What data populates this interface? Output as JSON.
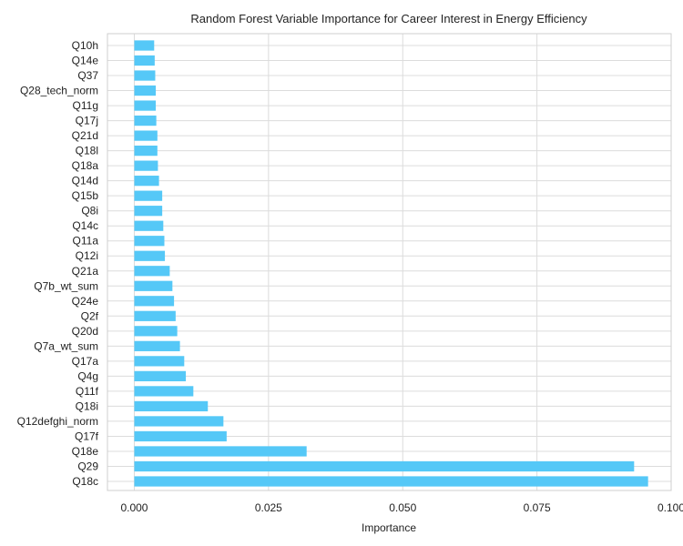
{
  "chart_data": {
    "type": "bar",
    "orientation": "horizontal",
    "title": "Random Forest Variable Importance for Career Interest in Energy Efficiency",
    "xlabel": "Importance",
    "ylabel": "",
    "xlim": [
      -0.005,
      0.1
    ],
    "xticks": [
      0.0,
      0.025,
      0.05,
      0.075,
      0.1
    ],
    "xtick_labels": [
      "0.000",
      "0.025",
      "0.050",
      "0.075",
      "0.100"
    ],
    "grid": true,
    "bar_color": "#55c8f7",
    "categories": [
      "Q10h",
      "Q14e",
      "Q37",
      "Q28_tech_norm",
      "Q11g",
      "Q17j",
      "Q21d",
      "Q18l",
      "Q18a",
      "Q14d",
      "Q15b",
      "Q8i",
      "Q14c",
      "Q11a",
      "Q12i",
      "Q21a",
      "Q7b_wt_sum",
      "Q24e",
      "Q2f",
      "Q20d",
      "Q7a_wt_sum",
      "Q17a",
      "Q4g",
      "Q11f",
      "Q18i",
      "Q12defghi_norm",
      "Q17f",
      "Q18e",
      "Q29",
      "Q18c"
    ],
    "values": [
      0.0037,
      0.0038,
      0.0039,
      0.004,
      0.004,
      0.0041,
      0.0043,
      0.0043,
      0.0044,
      0.0046,
      0.0052,
      0.0052,
      0.0054,
      0.0056,
      0.0057,
      0.0066,
      0.0071,
      0.0074,
      0.0077,
      0.008,
      0.0085,
      0.0093,
      0.0096,
      0.011,
      0.0137,
      0.0166,
      0.0172,
      0.0321,
      0.0931,
      0.0957
    ]
  }
}
